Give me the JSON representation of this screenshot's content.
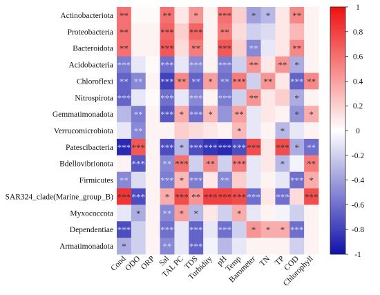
{
  "chart_data": {
    "type": "heatmap",
    "title": "",
    "xlabel": "",
    "ylabel": "",
    "rows": [
      "Actinobacteriota",
      "Proteobacteria",
      "Bacteroidota",
      "Acidobacteria",
      "Chloroflexi",
      "Nitrospirota",
      "Gemmatimonadota",
      "Verrucomicrobiota",
      "Patescibacteria",
      "Bdellovibrionota",
      "Firmicutes",
      "SAR324_clade(Marine_group_B)",
      "Myxococcota",
      "Dependentiae",
      "Armatimonadota"
    ],
    "columns": [
      "Cond",
      "ODO",
      "ORP",
      "Sal",
      "TAL PC",
      "TDS",
      "Turbidity",
      "pH",
      "Temp",
      "Barometer",
      "TN",
      "TP",
      "COD",
      "Chlorophyll"
    ],
    "values": [
      [
        0.6,
        0.02,
        0.02,
        0.6,
        0.1,
        0.45,
        0.05,
        0.6,
        0.2,
        -0.4,
        -0.3,
        0.1,
        0.5,
        0.05
      ],
      [
        0.6,
        0.05,
        0.05,
        0.65,
        0.2,
        0.65,
        0.05,
        0.55,
        0.15,
        -0.2,
        -0.15,
        0.1,
        0.3,
        0.05
      ],
      [
        0.6,
        0.05,
        0.05,
        0.7,
        0.15,
        0.55,
        0.05,
        0.7,
        0.2,
        -0.5,
        -0.1,
        0.1,
        0.5,
        0.05
      ],
      [
        -0.55,
        -0.1,
        0.02,
        -0.6,
        -0.1,
        -0.5,
        0.05,
        -0.55,
        -0.2,
        0.45,
        0.1,
        0.45,
        -0.35,
        0.05
      ],
      [
        -0.65,
        -0.5,
        0.05,
        -0.8,
        0.5,
        -0.65,
        0.4,
        -0.6,
        0.55,
        -0.2,
        0.45,
        0.1,
        -0.65,
        0.5
      ],
      [
        -0.65,
        -0.1,
        0.02,
        -0.6,
        -0.1,
        -0.5,
        0.05,
        -0.55,
        -0.2,
        0.45,
        0.1,
        0.2,
        -0.35,
        0.05
      ],
      [
        -0.3,
        -0.55,
        0.05,
        -0.7,
        0.35,
        -0.6,
        0.3,
        -0.45,
        0.4,
        -0.1,
        0.1,
        0.05,
        -0.45,
        0.35
      ],
      [
        -0.1,
        -0.5,
        0.05,
        0.05,
        0.2,
        0.15,
        0.1,
        0.05,
        0.3,
        -0.1,
        0.05,
        -0.3,
        -0.1,
        0.05
      ],
      [
        -0.9,
        0.7,
        0.05,
        -0.75,
        -0.3,
        -0.75,
        -0.85,
        -0.9,
        -0.75,
        0.75,
        0.1,
        0.75,
        -0.35,
        -0.6
      ],
      [
        0.05,
        -0.7,
        0.05,
        -0.5,
        0.6,
        -0.2,
        0.5,
        -0.2,
        0.55,
        -0.1,
        0.1,
        -0.3,
        -0.05,
        0.55
      ],
      [
        -0.5,
        -0.15,
        0.05,
        -0.55,
        0.3,
        -0.55,
        0.1,
        -0.5,
        0.2,
        -0.1,
        0.05,
        -0.1,
        -0.6,
        0.35
      ],
      [
        0.85,
        -0.75,
        0.05,
        0.35,
        0.75,
        0.45,
        0.8,
        0.8,
        0.75,
        -0.6,
        0.1,
        -0.6,
        0.15,
        0.75
      ],
      [
        -0.1,
        -0.35,
        0.05,
        -0.5,
        0.4,
        -0.3,
        0.1,
        -0.2,
        0.35,
        -0.1,
        0.05,
        -0.05,
        -0.2,
        0.05
      ],
      [
        -0.75,
        -0.2,
        0.05,
        -0.6,
        -0.1,
        -0.65,
        -0.1,
        -0.6,
        -0.2,
        0.45,
        0.35,
        0.35,
        -0.6,
        0.05
      ],
      [
        -0.35,
        -0.2,
        0.05,
        -0.5,
        -0.1,
        -0.65,
        -0.05,
        -0.3,
        -0.1,
        0.05,
        0.05,
        0.05,
        -0.2,
        0.05
      ]
    ],
    "significance": [
      [
        "**",
        "",
        "",
        "**",
        "",
        "*",
        "",
        "***",
        "",
        "*",
        "*",
        "",
        "**",
        ""
      ],
      [
        "**",
        "",
        "",
        "***",
        "",
        "***",
        "",
        "**",
        "",
        "",
        "",
        "",
        "",
        ""
      ],
      [
        "**",
        "",
        "",
        "***",
        "",
        "**",
        "",
        "***",
        "",
        "**",
        "",
        "",
        "**",
        ""
      ],
      [
        "***",
        "",
        "",
        "***",
        "",
        "***",
        "",
        "***",
        "",
        "**",
        "",
        "**",
        "*",
        ""
      ],
      [
        "**",
        "**",
        "",
        "***",
        "**",
        "**",
        "*",
        "**",
        "***",
        "",
        "**",
        "",
        "***",
        "**"
      ],
      [
        "***",
        "",
        "",
        "***",
        "",
        "***",
        "",
        "***",
        "",
        "**",
        "",
        "",
        "*",
        ""
      ],
      [
        "",
        "**",
        "",
        "***",
        "*",
        "***",
        "*",
        "",
        "**",
        "",
        "",
        "",
        "*",
        "*"
      ],
      [
        "",
        "**",
        "",
        "",
        "",
        "",
        "",
        "",
        "*",
        "",
        "",
        "*",
        "",
        ""
      ],
      [
        "***",
        "***",
        "",
        "***",
        "*",
        "***",
        "***",
        "***",
        "***",
        "***",
        "",
        "***",
        "*",
        "**"
      ],
      [
        "",
        "***",
        "",
        "**",
        "***",
        "",
        "**",
        "",
        "***",
        "",
        "",
        "*",
        "",
        "**"
      ],
      [
        "**",
        "",
        "",
        "***",
        "*",
        "***",
        "",
        "**",
        "",
        "",
        "",
        "",
        "***",
        "*"
      ],
      [
        "***",
        "***",
        "",
        "*",
        "***",
        "**",
        "***",
        "***",
        "***",
        "***",
        "",
        "***",
        "",
        "***"
      ],
      [
        "",
        "*",
        "",
        "**",
        "*",
        "*",
        "",
        "",
        "*",
        "",
        "",
        "",
        "",
        ""
      ],
      [
        "***",
        "",
        "",
        "***",
        "",
        "***",
        "",
        "***",
        "",
        "*",
        "*",
        "*",
        "***",
        ""
      ],
      [
        "*",
        "",
        "",
        "**",
        "",
        "***",
        "",
        "",
        "",
        "",
        "",
        "",
        "",
        ""
      ]
    ],
    "colorbar": {
      "min": -1,
      "max": 1,
      "ticks": [
        "1",
        "0.8",
        "0.6",
        "0.4",
        "0.2",
        "0",
        "-0.2",
        "-0.4",
        "-0.6",
        "-0.8",
        "-1"
      ],
      "colors": {
        "negative": "#1111aa",
        "neutral": "#ffffff",
        "positive": "#ee1111"
      }
    }
  }
}
